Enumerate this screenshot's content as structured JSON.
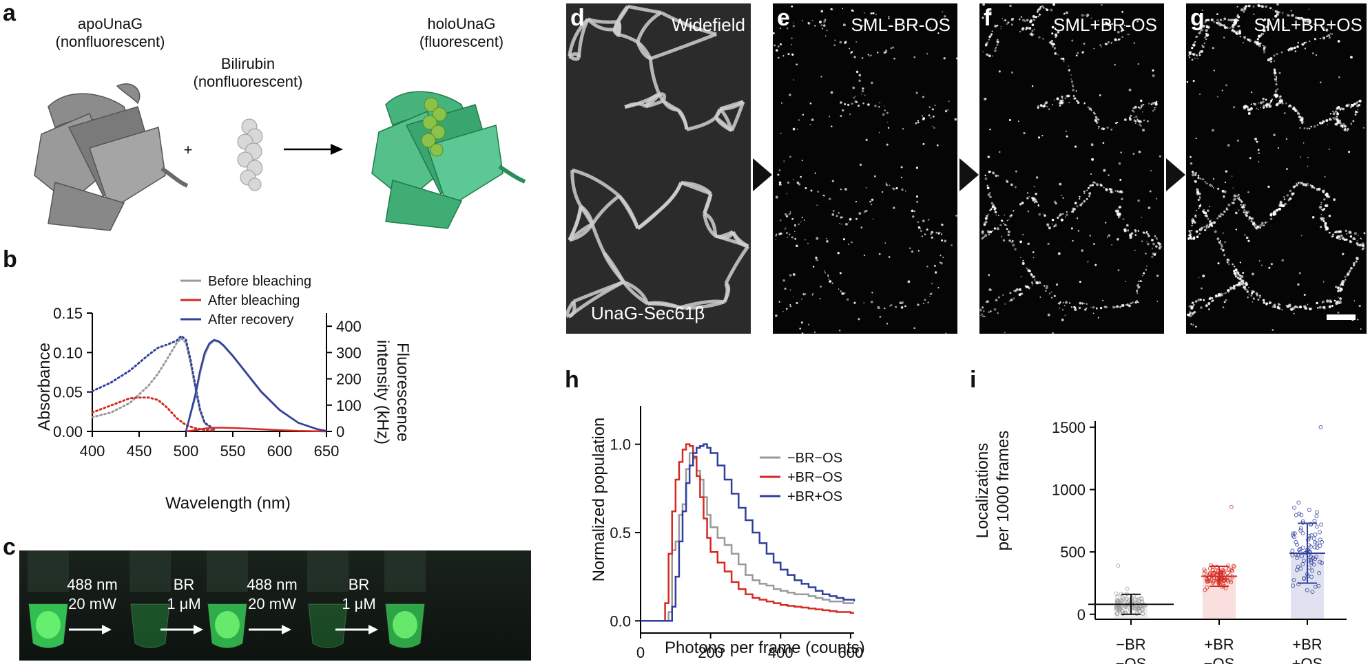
{
  "panel_a": {
    "label": "a",
    "apo_title": "apoUnaG",
    "apo_sub": "(nonfluorescent)",
    "br_title": "Bilirubin",
    "br_sub": "(nonfluorescent)",
    "holo_title": "holoUnaG",
    "holo_sub": "(fluorescent)",
    "plus": "+"
  },
  "panel_c": {
    "label": "c",
    "arrows": [
      {
        "line1": "488 nm",
        "line2": "20 mW"
      },
      {
        "line1": "BR",
        "line2": "1 μM"
      },
      {
        "line1": "488 nm",
        "line2": "20 mW"
      },
      {
        "line1": "BR",
        "line2": "1 μM"
      }
    ]
  },
  "panel_d": {
    "label": "d",
    "title": "Widefield",
    "caption": "UnaG-Sec61β"
  },
  "panel_e": {
    "label": "e",
    "title": "SML-BR-OS"
  },
  "panel_f": {
    "label": "f",
    "title": "SML+BR-OS"
  },
  "panel_g": {
    "label": "g",
    "title": "SML+BR+OS"
  },
  "colors": {
    "gray": "#999999",
    "red": "#d42a20",
    "blue": "#2e3f9c",
    "green": "#49b56a"
  },
  "chart_data": [
    {
      "panel": "b",
      "type": "line",
      "xlabel": "Wavelength (nm)",
      "ylabel": "Absorbance",
      "y2label_line1": "Fluorescence",
      "y2label_line2": "intensity (kHz)",
      "xlim": [
        400,
        650
      ],
      "ylim": [
        0,
        0.15
      ],
      "y2lim": [
        0,
        450
      ],
      "xticks": [
        400,
        450,
        500,
        550,
        600,
        650
      ],
      "yticks": [
        "0.00",
        "0.05",
        "0.10",
        "0.15"
      ],
      "y2ticks": [
        0,
        100,
        200,
        300,
        400
      ],
      "legend": [
        "Before bleaching",
        "After bleaching",
        "After recovery"
      ],
      "absorbance_dotted": [
        {
          "name": "Before bleaching",
          "x": [
            400,
            420,
            440,
            460,
            470,
            480,
            490,
            495,
            500,
            505,
            510,
            515,
            520,
            530
          ],
          "y": [
            0.018,
            0.024,
            0.036,
            0.058,
            0.073,
            0.092,
            0.112,
            0.118,
            0.112,
            0.086,
            0.055,
            0.026,
            0.01,
            0.002
          ]
        },
        {
          "name": "After bleaching",
          "x": [
            400,
            420,
            440,
            450,
            460,
            470,
            480,
            490,
            500,
            510,
            520,
            530
          ],
          "y": [
            0.024,
            0.033,
            0.042,
            0.043,
            0.043,
            0.04,
            0.03,
            0.017,
            0.008,
            0.004,
            0.002,
            0.001
          ]
        },
        {
          "name": "After recovery",
          "x": [
            400,
            420,
            440,
            460,
            470,
            480,
            490,
            495,
            500,
            505,
            510,
            515,
            520,
            530
          ],
          "y": [
            0.051,
            0.062,
            0.077,
            0.097,
            0.106,
            0.11,
            0.115,
            0.121,
            0.116,
            0.09,
            0.058,
            0.028,
            0.011,
            0.003
          ]
        }
      ],
      "fluorescence_solid": [
        {
          "name": "Before bleaching",
          "x": [
            500,
            510,
            515,
            520,
            525,
            530,
            535,
            540,
            550,
            560,
            570,
            580,
            600,
            620,
            640,
            650
          ],
          "y": [
            0,
            130,
            220,
            290,
            330,
            345,
            340,
            325,
            285,
            240,
            195,
            150,
            80,
            32,
            8,
            2
          ]
        },
        {
          "name": "After bleaching",
          "x": [
            500,
            510,
            520,
            530,
            540,
            550,
            570,
            600,
            620,
            650
          ],
          "y": [
            0,
            5,
            11,
            14,
            14,
            13,
            10,
            5,
            2,
            0
          ]
        },
        {
          "name": "After recovery",
          "x": [
            500,
            510,
            515,
            520,
            525,
            530,
            535,
            540,
            550,
            560,
            570,
            580,
            600,
            620,
            640,
            650
          ],
          "y": [
            0,
            140,
            230,
            300,
            335,
            348,
            343,
            328,
            288,
            243,
            198,
            153,
            82,
            33,
            9,
            2
          ]
        }
      ]
    },
    {
      "panel": "h",
      "type": "line",
      "xlabel": "Photons per frame (counts)",
      "ylabel": "Normalized population",
      "xlim": [
        0,
        610
      ],
      "ylim": [
        -0.03,
        1.1
      ],
      "xticks": [
        0,
        200,
        400,
        600
      ],
      "yticks": [
        "0.0",
        "0.5",
        "1.0"
      ],
      "series": [
        {
          "name": "−BR−OS",
          "x": [
            0,
            60,
            80,
            90,
            100,
            110,
            120,
            130,
            140,
            150,
            160,
            170,
            180,
            190,
            200,
            220,
            240,
            260,
            280,
            300,
            320,
            340,
            360,
            380,
            400,
            420,
            440,
            460,
            480,
            500,
            520,
            540,
            560,
            580,
            600,
            610
          ],
          "y": [
            0,
            0,
            0.05,
            0.4,
            0.45,
            0.6,
            0.66,
            0.86,
            0.95,
            0.92,
            0.85,
            0.8,
            0.7,
            0.6,
            0.53,
            0.47,
            0.43,
            0.38,
            0.32,
            0.26,
            0.23,
            0.21,
            0.2,
            0.18,
            0.17,
            0.16,
            0.15,
            0.15,
            0.14,
            0.13,
            0.12,
            0.11,
            0.11,
            0.1,
            0.1,
            0.1
          ]
        },
        {
          "name": "+BR−OS",
          "x": [
            0,
            60,
            70,
            80,
            90,
            100,
            110,
            120,
            130,
            140,
            150,
            160,
            170,
            180,
            190,
            200,
            220,
            240,
            260,
            280,
            300,
            320,
            340,
            360,
            380,
            400,
            420,
            440,
            460,
            480,
            500,
            520,
            540,
            560,
            580,
            600,
            610
          ],
          "y": [
            0,
            0,
            0.1,
            0.38,
            0.62,
            0.8,
            0.9,
            0.97,
            1.0,
            0.99,
            0.93,
            0.82,
            0.7,
            0.58,
            0.47,
            0.39,
            0.33,
            0.28,
            0.22,
            0.18,
            0.15,
            0.13,
            0.12,
            0.11,
            0.1,
            0.09,
            0.085,
            0.08,
            0.075,
            0.07,
            0.065,
            0.06,
            0.055,
            0.05,
            0.05,
            0.045,
            0.045
          ]
        },
        {
          "name": "+BR+OS",
          "x": [
            0,
            80,
            90,
            100,
            110,
            120,
            130,
            140,
            150,
            160,
            170,
            180,
            190,
            200,
            220,
            240,
            260,
            280,
            300,
            320,
            340,
            360,
            380,
            400,
            420,
            440,
            460,
            480,
            500,
            520,
            540,
            560,
            580,
            600,
            610
          ],
          "y": [
            0,
            0,
            0.08,
            0.25,
            0.45,
            0.62,
            0.78,
            0.88,
            0.95,
            0.98,
            0.99,
            1.0,
            0.98,
            0.95,
            0.88,
            0.8,
            0.72,
            0.64,
            0.57,
            0.5,
            0.44,
            0.38,
            0.33,
            0.29,
            0.26,
            0.23,
            0.21,
            0.19,
            0.17,
            0.15,
            0.14,
            0.13,
            0.12,
            0.12,
            0.11
          ]
        }
      ]
    },
    {
      "panel": "i",
      "type": "scatter",
      "ylabel_line1": "Localizations",
      "ylabel_line2": "per 1000 frames",
      "ylim": [
        -40,
        1560
      ],
      "yticks": [
        0,
        500,
        1000,
        1500
      ],
      "categories": [
        {
          "line1": "−BR",
          "line2": "−OS",
          "mean": 80,
          "sd": 80,
          "max": 390
        },
        {
          "line1": "+BR",
          "line2": "−OS",
          "mean": 305,
          "sd": 80,
          "max": 860
        },
        {
          "line1": "+BR",
          "line2": "+OS",
          "mean": 490,
          "sd": 240,
          "max": 1500
        }
      ]
    }
  ]
}
